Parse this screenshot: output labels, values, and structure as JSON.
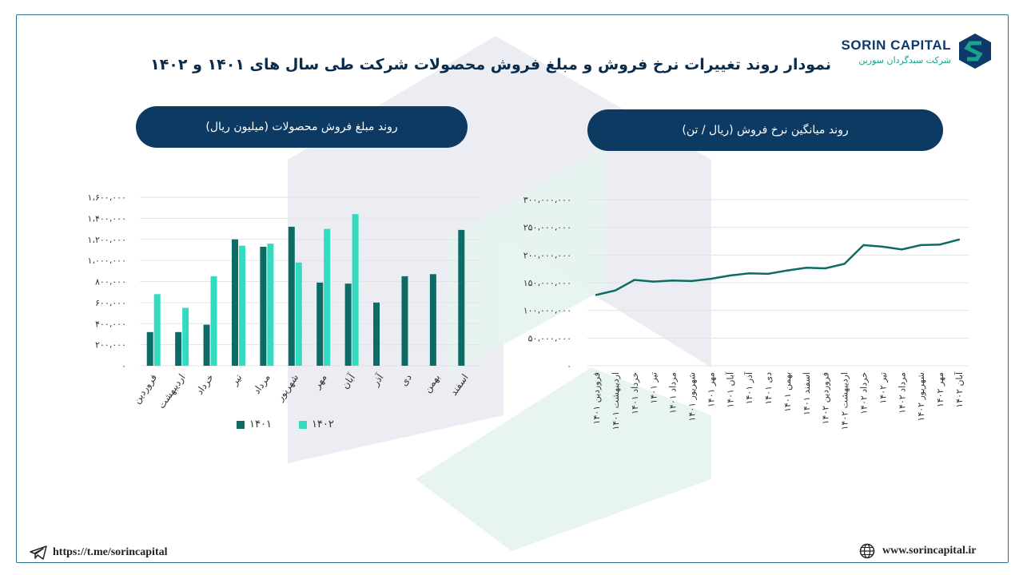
{
  "brand": {
    "name": "SORIN CAPITAL",
    "subtitle": "شرکت سبدگردان سورین",
    "primary_color": "#0e3a6b",
    "accent_color": "#1aa38a"
  },
  "title": "نمودار روند تغییرات نرخ فروش و مبلغ فروش محصولات شرکت طی سال های ۱۴۰۱ و ۱۴۰۲",
  "footer": {
    "telegram_url": "https://t.me/sorincapital",
    "website_url": "www.sorincapital.ir",
    "telegram_icon": "telegram-icon",
    "globe_icon": "globe-icon"
  },
  "chart_data": [
    {
      "type": "bar",
      "title": "روند مبلغ فروش محصولات (میلیون ریال)",
      "categories": [
        "فروردین",
        "اردیبهشت",
        "خرداد",
        "تیر",
        "مرداد",
        "شهریور",
        "مهر",
        "آبان",
        "آذر",
        "دی",
        "بهمن",
        "اسفند"
      ],
      "series": [
        {
          "name": "۱۴۰۱",
          "color": "#0d6b65",
          "values": [
            320000,
            320000,
            390000,
            1200000,
            1130000,
            1320000,
            790000,
            780000,
            600000,
            850000,
            870000,
            1290000
          ]
        },
        {
          "name": "۱۴۰۲",
          "color": "#33dcc0",
          "values": [
            680000,
            550000,
            850000,
            1140000,
            1160000,
            980000,
            1300000,
            1440000,
            null,
            null,
            null,
            null
          ]
        }
      ],
      "ylim": [
        0,
        1600000
      ],
      "yticks": [
        0,
        200000,
        400000,
        600000,
        800000,
        1000000,
        1200000,
        1400000,
        1600000
      ],
      "ytick_labels": [
        "۰",
        "۲۰۰،۰۰۰",
        "۴۰۰،۰۰۰",
        "۶۰۰،۰۰۰",
        "۸۰۰،۰۰۰",
        "۱،۰۰۰،۰۰۰",
        "۱،۲۰۰،۰۰۰",
        "۱،۴۰۰،۰۰۰",
        "۱،۶۰۰،۰۰۰"
      ],
      "grid": true,
      "legend": "bottom"
    },
    {
      "type": "line",
      "title": "روند میانگین نرخ فروش (ریال / تن)",
      "categories": [
        "فروردین ۱۴۰۱",
        "اردیبهشت ۱۴۰۱",
        "خرداد ۱۴۰۱",
        "تیر ۱۴۰۱",
        "مرداد ۱۴۰۱",
        "شهریور ۱۴۰۱",
        "مهر ۱۴۰۱",
        "آبان ۱۴۰۱",
        "آذر ۱۴۰۱",
        "دی ۱۴۰۱",
        "بهمن ۱۴۰۱",
        "اسفند ۱۴۰۱",
        "فروردین ۱۴۰۲",
        "اردیبهشت ۱۴۰۲",
        "خرداد ۱۴۰۲",
        "تیر ۱۴۰۲",
        "مرداد ۱۴۰۲",
        "شهریور ۱۴۰۲",
        "مهر ۱۴۰۲",
        "آبان ۱۴۰۲"
      ],
      "series": [
        {
          "color": "#0d6b65",
          "values": [
            128000000,
            136000000,
            155000000,
            152000000,
            154000000,
            153000000,
            157000000,
            163000000,
            167000000,
            166000000,
            172000000,
            177000000,
            176000000,
            184000000,
            218000000,
            215000000,
            210000000,
            218000000,
            219000000,
            228000000
          ]
        }
      ],
      "ylim": [
        0,
        300000000
      ],
      "yticks": [
        0,
        50000000,
        100000000,
        150000000,
        200000000,
        250000000,
        300000000
      ],
      "ytick_labels": [
        "۰",
        "۵۰،۰۰۰،۰۰۰",
        "۱۰۰،۰۰۰،۰۰۰",
        "۱۵۰،۰۰۰،۰۰۰",
        "۲۰۰،۰۰۰،۰۰۰",
        "۲۵۰،۰۰۰،۰۰۰",
        "۳۰۰،۰۰۰،۰۰۰"
      ],
      "grid": true
    }
  ]
}
